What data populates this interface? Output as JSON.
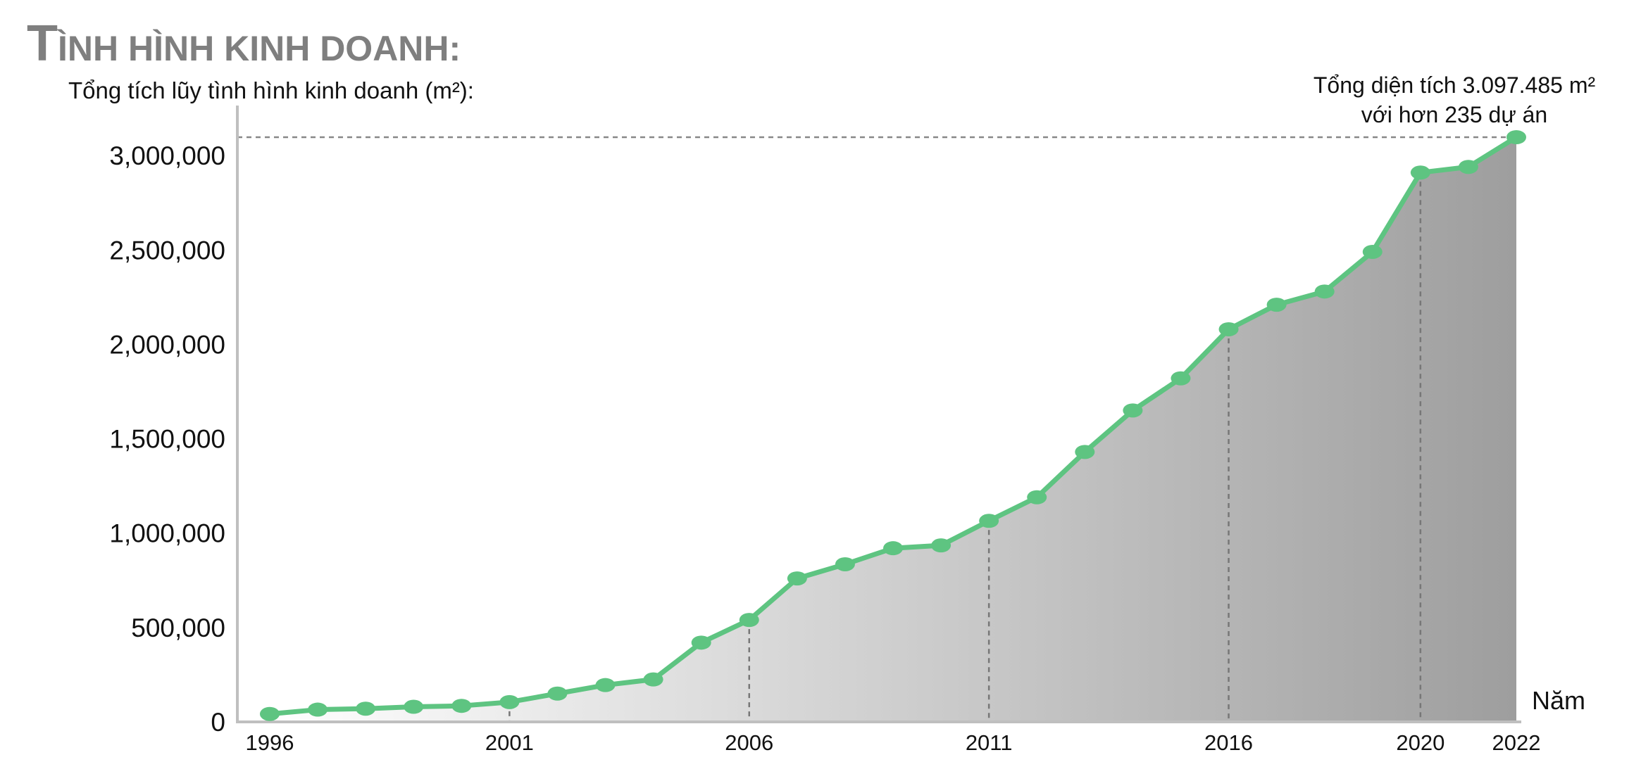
{
  "heading": {
    "initial": "T",
    "rest": "ÌNH HÌNH KINH DOANH:"
  },
  "chart_data": {
    "type": "area",
    "title": "",
    "ylabel": "Tổng tích lũy tình hình kinh doanh (m²):",
    "xlabel": "Năm",
    "x_tick_labels": [
      "1996",
      "2001",
      "2006",
      "2011",
      "2016",
      "2020",
      "2022"
    ],
    "y_tick_labels": [
      "0",
      "500,000",
      "1,000,000",
      "1,500,000",
      "2,000,000",
      "2,500,000",
      "3,000,000"
    ],
    "ylim": [
      0,
      3097485
    ],
    "x": [
      1996,
      1997,
      1998,
      1999,
      2000,
      2001,
      2002,
      2003,
      2004,
      2005,
      2006,
      2007,
      2008,
      2009,
      2010,
      2011,
      2012,
      2013,
      2014,
      2015,
      2016,
      2017,
      2018,
      2019,
      2020,
      2021,
      2022
    ],
    "series": [
      {
        "values": [
          42000,
          65000,
          70000,
          80000,
          85000,
          105000,
          150000,
          195000,
          225000,
          420000,
          540000,
          760000,
          835000,
          920000,
          935000,
          1065000,
          1190000,
          1430000,
          1650000,
          1820000,
          2080000,
          2210000,
          2280000,
          2490000,
          2910000,
          2940000,
          3097485
        ],
        "color": "#5ec481"
      }
    ],
    "reference_years": [
      2001,
      2006,
      2011,
      2016,
      2020
    ],
    "annotation": {
      "line1": "Tổng diện tích 3.097.485 m²",
      "line2": "với hơn 235 dự án"
    },
    "colors": {
      "line": "#5ec481",
      "marker": "#5ec481",
      "area_start": "#ffffff",
      "area_end": "#9e9e9e",
      "axis": "#bfbfbf",
      "reference_line": "#777777"
    },
    "grid": false,
    "legend": "none"
  }
}
